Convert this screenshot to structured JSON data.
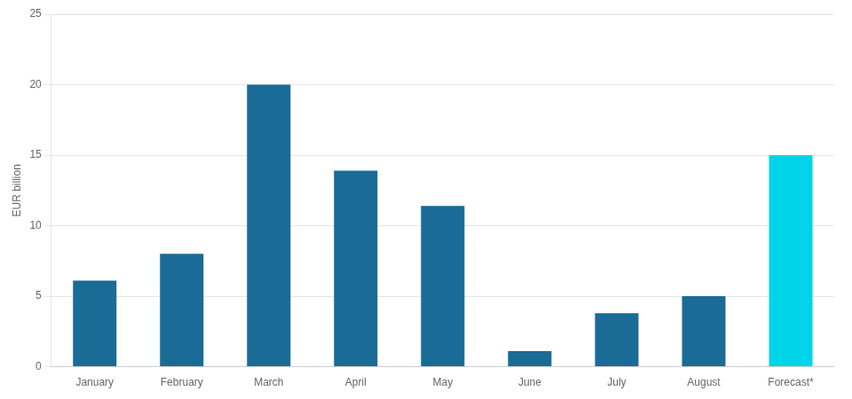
{
  "chart_data": {
    "type": "bar",
    "categories": [
      "January",
      "February",
      "March",
      "April",
      "May",
      "June",
      "July",
      "August",
      "Forecast*"
    ],
    "values": [
      6.1,
      8.0,
      20.0,
      13.9,
      11.4,
      1.1,
      3.8,
      5.0,
      15.0
    ],
    "colors": [
      "#1a6b96",
      "#1a6b96",
      "#1a6b96",
      "#1a6b96",
      "#1a6b96",
      "#1a6b96",
      "#1a6b96",
      "#1a6b96",
      "#00d4e8"
    ],
    "ylabel": "EUR billion",
    "ylim": [
      0,
      25
    ],
    "yticks": [
      0,
      5,
      10,
      15,
      20,
      25
    ],
    "grid": true
  }
}
